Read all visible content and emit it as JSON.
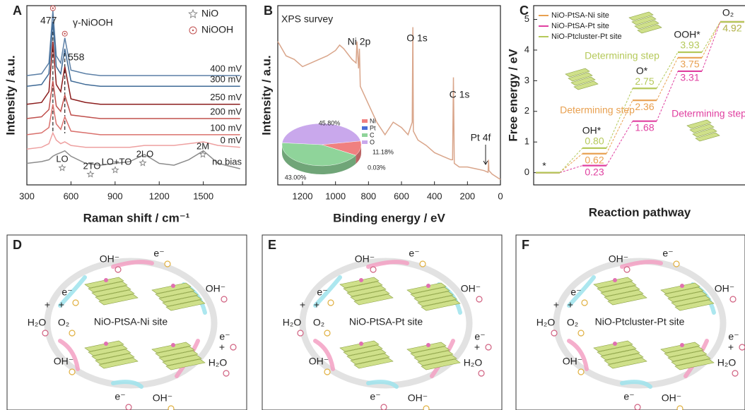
{
  "chart_data": [
    {
      "type": "line",
      "panel": "A",
      "x_label": "Raman shift / cm⁻¹",
      "y_label": "Intensity / a.u.",
      "x": [
        300,
        400,
        450,
        477,
        500,
        530,
        558,
        600,
        700,
        800,
        900,
        1000,
        1100,
        1200,
        1300,
        1400,
        1500,
        1600,
        1750
      ],
      "xlim": [
        300,
        1790
      ],
      "xticks": [
        300,
        600,
        900,
        1200,
        1500
      ],
      "ylim": [
        0,
        100
      ],
      "series": [
        {
          "name": "400 mV",
          "color": "#5b7fa6",
          "values": [
            61,
            62,
            68,
            97,
            72,
            68,
            82,
            64,
            62,
            61,
            61,
            61,
            61,
            61,
            61,
            61,
            61,
            61,
            61
          ]
        },
        {
          "name": "300 mV",
          "color": "#3f6a96",
          "values": [
            55,
            56,
            62,
            91,
            66,
            62,
            76,
            58,
            56,
            55,
            55,
            55,
            55,
            55,
            55,
            55,
            55,
            55,
            55
          ]
        },
        {
          "name": "250 mV",
          "color": "#8b1c1c",
          "values": [
            45,
            46,
            52,
            80,
            56,
            52,
            66,
            48,
            46,
            45,
            45,
            45,
            45,
            45,
            45,
            45,
            45,
            45,
            45
          ]
        },
        {
          "name": "200 mV",
          "color": "#c0504d",
          "values": [
            37,
            38,
            42,
            58,
            44,
            41,
            50,
            39,
            38,
            37,
            37,
            37,
            37,
            37,
            37,
            37,
            37,
            37,
            37
          ]
        },
        {
          "name": "100 mV",
          "color": "#d9706c",
          "values": [
            28,
            29,
            32,
            45,
            34,
            31,
            38,
            30,
            29,
            28,
            28,
            28,
            28,
            28,
            28,
            28,
            28,
            28,
            28
          ]
        },
        {
          "name": "0 mV",
          "color": "#eea0a0",
          "values": [
            20,
            21,
            23,
            29,
            25,
            23,
            24,
            22,
            21,
            21,
            21,
            21,
            22,
            22,
            22,
            23,
            24,
            22,
            21
          ]
        },
        {
          "name": "no bias",
          "color": "#8c8c8c",
          "values": [
            12,
            13,
            14,
            16,
            17,
            18,
            19,
            16,
            12,
            11,
            12,
            13,
            17,
            12,
            11,
            14,
            19,
            12,
            9
          ]
        }
      ],
      "annotations": [
        "477",
        "γ-NiOOH",
        "558",
        "LO",
        "2TO",
        "LO+TO",
        "2LO",
        "2M"
      ],
      "legend": [
        "NiO",
        "NiOOH"
      ]
    },
    {
      "type": "line",
      "panel": "B",
      "x_label": "Binding energy / eV",
      "y_label": "Intensity / a.u.",
      "x": [
        1350,
        1300,
        1250,
        1200,
        1150,
        1100,
        1050,
        1000,
        975,
        950,
        900,
        875,
        870,
        860,
        855,
        850,
        800,
        750,
        700,
        650,
        600,
        560,
        535,
        531,
        528,
        500,
        450,
        400,
        350,
        300,
        290,
        285,
        280,
        250,
        200,
        150,
        100,
        75,
        72,
        70,
        50,
        0
      ],
      "xlim": [
        1350,
        0
      ],
      "xticks": [
        1200,
        1000,
        800,
        600,
        400,
        200,
        0
      ],
      "ylim": [
        0,
        100
      ],
      "series": [
        {
          "color": "#d9a58a",
          "values": [
            80,
            72,
            70,
            66,
            68,
            70,
            72,
            75,
            78,
            76,
            70,
            68,
            80,
            65,
            76,
            55,
            45,
            35,
            28,
            35,
            32,
            28,
            35,
            88,
            30,
            25,
            22,
            18,
            16,
            14,
            14,
            60,
            12,
            10,
            10,
            9,
            8,
            7,
            14,
            8,
            6,
            3
          ]
        }
      ],
      "annotations": [
        "XPS survey",
        "Ni 2p",
        "O 1s",
        "C 1s",
        "Pt 4f"
      ]
    },
    {
      "type": "pie",
      "categories": [
        "Ni",
        "Pt",
        "C",
        "O"
      ],
      "values": [
        11.18,
        0.03,
        43.0,
        45.8
      ],
      "value_labels": [
        "11.18%",
        "0.03%",
        "43.00%",
        "45.80%"
      ],
      "colors": [
        "#f08080",
        "#4a6fd8",
        "#8fd49a",
        "#c9a8ec"
      ]
    },
    {
      "type": "energy",
      "panel": "C",
      "x_label": "Reaction pathway",
      "y_label": "Free energy / eV",
      "categories": [
        "*",
        "OH*",
        "O*",
        "OOH*",
        "O₂"
      ],
      "ylim": [
        -0.4,
        5.45
      ],
      "yticks": [
        0,
        1,
        2,
        3,
        4,
        5
      ],
      "series": [
        {
          "name": "NiO-PtSA-Ni site",
          "color": "#e8a050",
          "values": [
            0,
            0.62,
            2.36,
            3.75,
            4.92
          ],
          "value_labels": [
            null,
            "0.62",
            "2.36",
            "3.75",
            "4.92"
          ]
        },
        {
          "name": "NiO-PtSA-Pt site",
          "color": "#e040a0",
          "values": [
            0,
            0.23,
            1.68,
            3.31,
            4.92
          ],
          "value_labels": [
            null,
            "0.23",
            "1.68",
            "3.31",
            "4.92"
          ]
        },
        {
          "name": "NiO-Ptcluster-Pt site",
          "color": "#b5c95a",
          "values": [
            0,
            0.8,
            2.75,
            3.93,
            4.92
          ],
          "value_labels": [
            null,
            "0.80",
            "2.75",
            "3.93",
            "4.92"
          ]
        }
      ],
      "annotations": [
        {
          "text": "Determining step",
          "color": "#b5c95a"
        },
        {
          "text": "Determining step",
          "color": "#e8a050"
        },
        {
          "text": "Determining step",
          "color": "#e040a0"
        }
      ]
    }
  ],
  "panels": [
    {
      "label": "D",
      "site": "NiO-PtSA-Ni site",
      "labels": [
        "OH⁻",
        "e⁻",
        "OH⁻",
        "e⁻",
        "+",
        "+",
        "H₂O",
        "O₂",
        "e⁻",
        "+",
        "H₂O",
        "OH⁻",
        "e⁻",
        "OH⁻"
      ]
    },
    {
      "label": "E",
      "site": "NiO-PtSA-Pt site",
      "labels": [
        "OH⁻",
        "e⁻",
        "OH⁻",
        "e⁻",
        "+",
        "+",
        "H₂O",
        "O₂",
        "e⁻",
        "+",
        "H₂O",
        "OH⁻",
        "e⁻",
        "OH⁻"
      ]
    },
    {
      "label": "F",
      "site": "NiO-Ptcluster-Pt site",
      "labels": [
        "OH⁻",
        "e⁻",
        "OH⁻",
        "e⁻",
        "+",
        "+",
        "H₂O",
        "O₂",
        "e⁻",
        "+",
        "H₂O",
        "OH⁻",
        "e⁻",
        "OH⁻"
      ]
    }
  ]
}
